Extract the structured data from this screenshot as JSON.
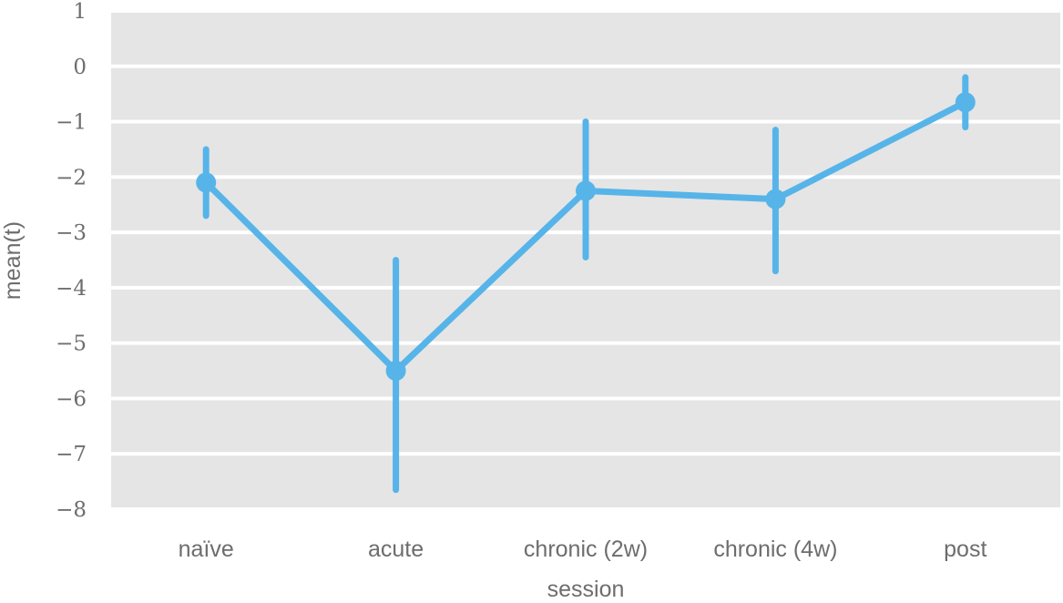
{
  "chart_data": {
    "type": "line",
    "variant": "point-plot-with-ci-error-bars",
    "title": "",
    "xlabel": "session",
    "ylabel": "mean(t)",
    "categories": [
      "naïve",
      "acute",
      "chronic (2w)",
      "chronic (4w)",
      "post"
    ],
    "series": [
      {
        "name": "mean(t)",
        "means": [
          -2.1,
          -5.5,
          -2.25,
          -2.4,
          -0.65
        ],
        "ci_low": [
          -2.7,
          -7.65,
          -3.45,
          -3.7,
          -1.1
        ],
        "ci_high": [
          -1.5,
          -3.5,
          -1.0,
          -1.15,
          -0.2
        ],
        "color": "#56B4E9"
      }
    ],
    "ylim": [
      -8,
      1
    ],
    "yticks": [
      1,
      0,
      -1,
      -2,
      -3,
      -4,
      -5,
      -6,
      -7,
      -8
    ],
    "legend": "none",
    "grid": {
      "horizontal": true,
      "vertical": false
    }
  },
  "style": {
    "accent_color": "#56B4E9",
    "plot_background": "#E5E5E5",
    "gridline_color": "#FFFFFF",
    "text_color": "#6D6D6D",
    "figure_background": "#FFFFFF"
  }
}
